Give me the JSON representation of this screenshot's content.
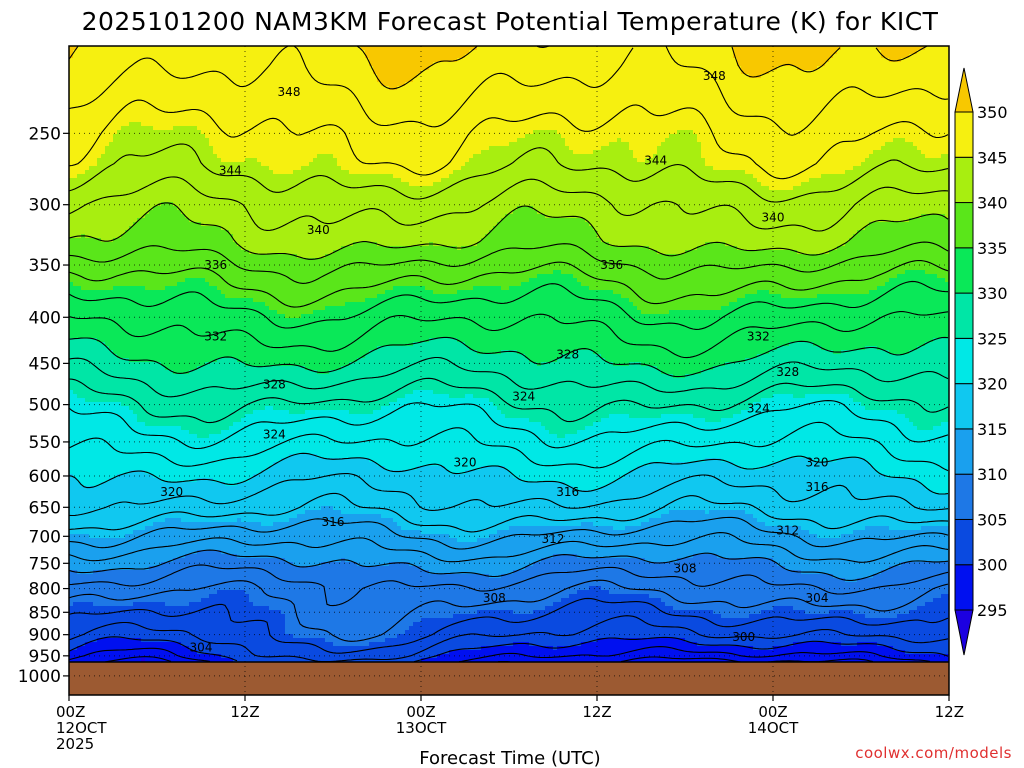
{
  "chart_data": {
    "type": "heatmap",
    "title": "2025101200 NAM3KM Forecast Potential Temperature (K) for KICT",
    "xlabel": "Forecast Time (UTC)",
    "credit": "coolwx.com/models",
    "y_axis": {
      "quantity": "pressure (hPa)",
      "range": [
        200,
        1050
      ],
      "scale": "log",
      "ticks": [
        250,
        300,
        350,
        400,
        450,
        500,
        550,
        600,
        650,
        700,
        750,
        800,
        850,
        900,
        950,
        1000
      ]
    },
    "x_axis": {
      "quantity": "forecast hour",
      "range": [
        0,
        60
      ],
      "ticks": [
        {
          "hour": 0,
          "lines": [
            "00Z",
            "12OCT",
            "2025"
          ]
        },
        {
          "hour": 12,
          "lines": [
            "12Z"
          ]
        },
        {
          "hour": 24,
          "lines": [
            "00Z",
            "13OCT"
          ]
        },
        {
          "hour": 36,
          "lines": [
            "12Z"
          ]
        },
        {
          "hour": 48,
          "lines": [
            "00Z",
            "14OCT"
          ]
        },
        {
          "hour": 60,
          "lines": [
            "12Z"
          ]
        }
      ]
    },
    "colorbar": {
      "ticks": [
        295,
        300,
        305,
        310,
        315,
        320,
        325,
        330,
        335,
        340,
        345,
        350
      ],
      "bins": [
        {
          "range": [
            290,
            295
          ],
          "color": "#1c00e0"
        },
        {
          "range": [
            295,
            300
          ],
          "color": "#0010f0"
        },
        {
          "range": [
            300,
            305
          ],
          "color": "#0a4ae0"
        },
        {
          "range": [
            305,
            310
          ],
          "color": "#1e78e6"
        },
        {
          "range": [
            310,
            315
          ],
          "color": "#1aa0ee"
        },
        {
          "range": [
            315,
            320
          ],
          "color": "#10c8f0"
        },
        {
          "range": [
            320,
            325
          ],
          "color": "#00e8e6"
        },
        {
          "range": [
            325,
            330
          ],
          "color": "#00e6a6"
        },
        {
          "range": [
            330,
            335
          ],
          "color": "#0ae858"
        },
        {
          "range": [
            335,
            340
          ],
          "color": "#5ae61a"
        },
        {
          "range": [
            340,
            345
          ],
          "color": "#a8ee10"
        },
        {
          "range": [
            345,
            350
          ],
          "color": "#f6f010"
        },
        {
          "range": [
            350,
            355
          ],
          "color": "#f8c800"
        }
      ],
      "extend": "both"
    },
    "theta_profile": [
      {
        "p": 210,
        "theta": 349
      },
      {
        "p": 250,
        "theta": 346
      },
      {
        "p": 270,
        "theta": 345
      },
      {
        "p": 300,
        "theta": 342
      },
      {
        "p": 330,
        "theta": 340
      },
      {
        "p": 360,
        "theta": 336.5
      },
      {
        "p": 400,
        "theta": 333
      },
      {
        "p": 450,
        "theta": 329.5
      },
      {
        "p": 500,
        "theta": 325.5
      },
      {
        "p": 550,
        "theta": 322.5
      },
      {
        "p": 600,
        "theta": 319.5
      },
      {
        "p": 650,
        "theta": 317
      },
      {
        "p": 700,
        "theta": 313.5
      },
      {
        "p": 750,
        "theta": 310
      },
      {
        "p": 800,
        "theta": 307
      },
      {
        "p": 850,
        "theta": 305.5
      },
      {
        "p": 900,
        "theta": 304
      },
      {
        "p": 950,
        "theta": 301
      },
      {
        "p": 970,
        "theta": 299
      }
    ],
    "surface_pressure": 965,
    "contour_interval": 2,
    "contour_labels": [
      {
        "text": "348",
        "hour": 15,
        "p": 225
      },
      {
        "text": "348",
        "hour": 44,
        "p": 216
      },
      {
        "text": "344",
        "hour": 11,
        "p": 275
      },
      {
        "text": "344",
        "hour": 40,
        "p": 268
      },
      {
        "text": "340",
        "hour": 17,
        "p": 320
      },
      {
        "text": "340",
        "hour": 48,
        "p": 310
      },
      {
        "text": "336",
        "hour": 10,
        "p": 350
      },
      {
        "text": "336",
        "hour": 37,
        "p": 350
      },
      {
        "text": "332",
        "hour": 10,
        "p": 420
      },
      {
        "text": "332",
        "hour": 47,
        "p": 420
      },
      {
        "text": "328",
        "hour": 14,
        "p": 475
      },
      {
        "text": "328",
        "hour": 34,
        "p": 440
      },
      {
        "text": "328",
        "hour": 49,
        "p": 460
      },
      {
        "text": "324",
        "hour": 14,
        "p": 540
      },
      {
        "text": "324",
        "hour": 31,
        "p": 490
      },
      {
        "text": "324",
        "hour": 47,
        "p": 505
      },
      {
        "text": "320",
        "hour": 7,
        "p": 625
      },
      {
        "text": "320",
        "hour": 27,
        "p": 580
      },
      {
        "text": "320",
        "hour": 51,
        "p": 580
      },
      {
        "text": "316",
        "hour": 18,
        "p": 675
      },
      {
        "text": "316",
        "hour": 34,
        "p": 625
      },
      {
        "text": "316",
        "hour": 51,
        "p": 617
      },
      {
        "text": "312",
        "hour": 33,
        "p": 705
      },
      {
        "text": "312",
        "hour": 49,
        "p": 690
      },
      {
        "text": "308",
        "hour": 29,
        "p": 820
      },
      {
        "text": "308",
        "hour": 42,
        "p": 760
      },
      {
        "text": "304",
        "hour": 9,
        "p": 930
      },
      {
        "text": "304",
        "hour": 51,
        "p": 820
      },
      {
        "text": "300",
        "hour": 46,
        "p": 905
      }
    ]
  }
}
